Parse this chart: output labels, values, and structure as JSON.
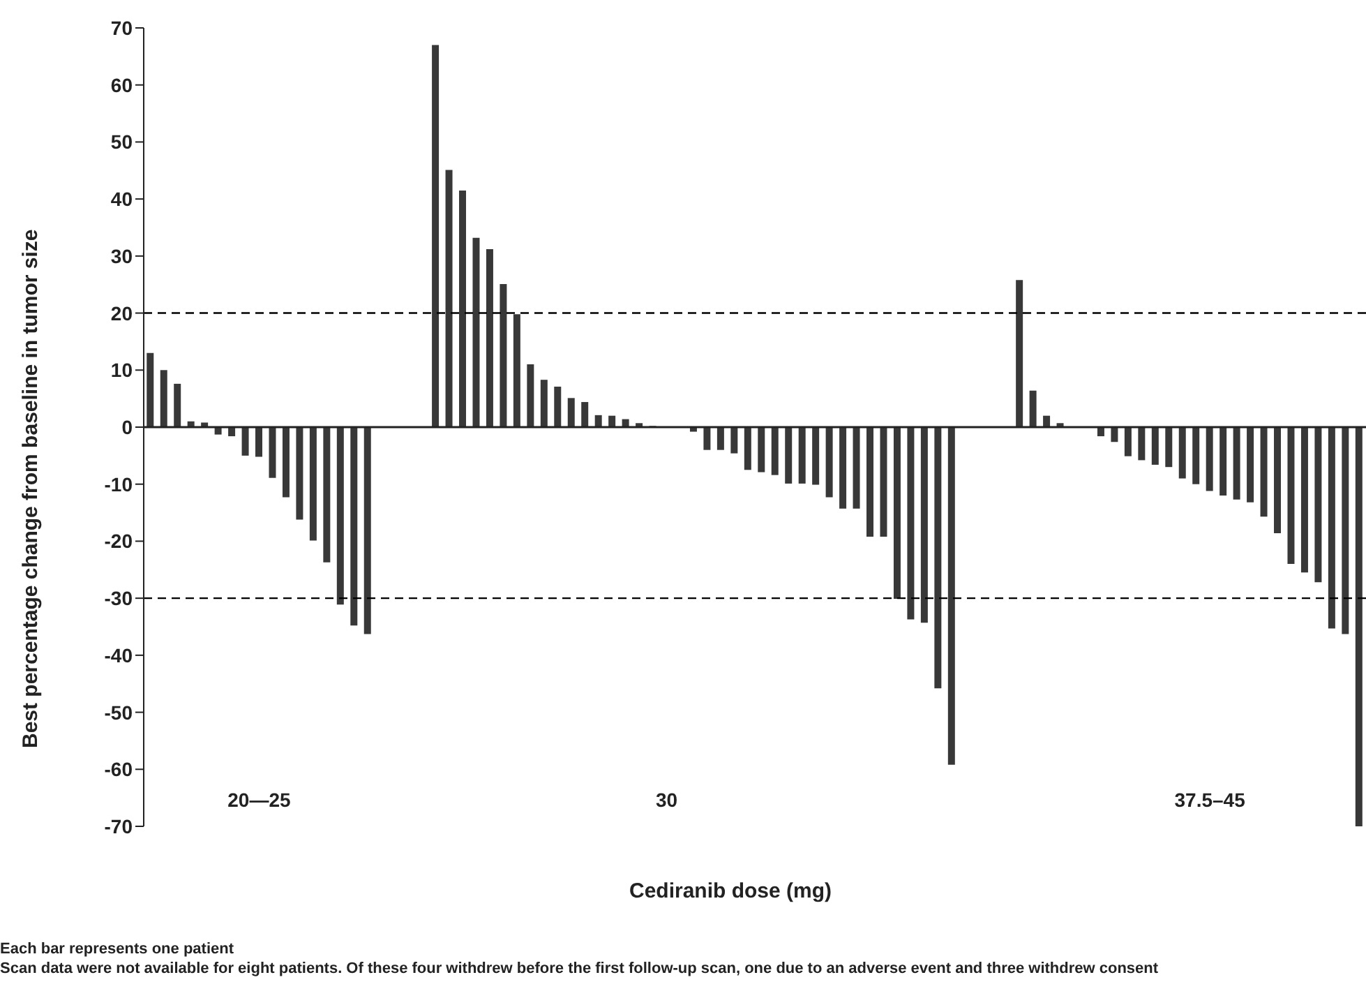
{
  "chart_data": {
    "type": "bar",
    "xlabel": "Cediranib dose (mg)",
    "ylabel": "Best percentage change from baseline in tumor size",
    "categories": [
      null,
      null,
      null,
      null,
      null,
      null,
      null,
      null,
      "20—25",
      null,
      null,
      null,
      null,
      null,
      null,
      null,
      null,
      null,
      null,
      null,
      null,
      null,
      null,
      null,
      null,
      null,
      null,
      null,
      null,
      null,
      null,
      null,
      null,
      null,
      null,
      null,
      null,
      null,
      "30",
      null,
      null,
      null,
      null,
      null,
      null,
      null,
      null,
      null,
      null,
      null,
      null,
      null,
      null,
      null,
      null,
      null,
      null,
      null,
      null,
      null,
      null,
      null,
      null,
      null,
      null,
      null,
      null,
      null,
      null,
      null,
      null,
      null,
      null,
      null,
      null,
      null,
      null,
      null,
      "37.5–45",
      null,
      null,
      null,
      null,
      null,
      null,
      null,
      null,
      null,
      null,
      null
    ],
    "values": [
      13,
      10,
      7.6,
      1,
      0.8,
      -1.3,
      -1.6,
      -5,
      -5.2,
      -8.9,
      -12.3,
      -16.2,
      -19.9,
      -23.7,
      -31.1,
      -34.8,
      -36.3,
      null,
      null,
      null,
      null,
      67,
      45.1,
      41.5,
      33.2,
      31.2,
      25.1,
      19.8,
      11,
      8.3,
      7.1,
      5.1,
      4.4,
      2.1,
      2,
      1.4,
      0.7,
      0.2,
      0,
      0,
      -0.8,
      -4,
      -4,
      -4.6,
      -7.5,
      -7.9,
      -8.4,
      -9.9,
      -9.9,
      -10.1,
      -12.3,
      -14.3,
      -14.3,
      -19.2,
      -19.2,
      -30.1,
      -33.7,
      -34.3,
      -45.8,
      -59.2,
      null,
      null,
      null,
      null,
      25.8,
      6.4,
      2,
      0.7,
      0,
      0,
      -1.6,
      -2.6,
      -5.1,
      -5.8,
      -6.6,
      -7,
      -9,
      -10,
      -11.2,
      -12,
      -12.7,
      -13.2,
      -15.7,
      -18.6,
      -24,
      -25.5,
      -27.2,
      -35.3,
      -36.3,
      -70
    ],
    "color": "#383838",
    "ylim": [
      -70,
      70
    ],
    "yticks": [
      -70,
      -60,
      -50,
      -40,
      -30,
      -20,
      -10,
      0,
      10,
      20,
      30,
      40,
      50,
      60,
      70
    ],
    "grid": false,
    "legend": false,
    "ref_lines": [
      {
        "axis": "y",
        "value": 20,
        "color": "#000000",
        "line_style": "dashed"
      },
      {
        "axis": "y",
        "value": -30,
        "color": "#000000",
        "line_style": "dashed"
      }
    ],
    "annotations": [
      "Each bar represents one patient",
      "Scan data were not available for eight patients. Of these four withdrew before the first follow-up scan, one due to an adverse event and three withdrew consent"
    ]
  }
}
